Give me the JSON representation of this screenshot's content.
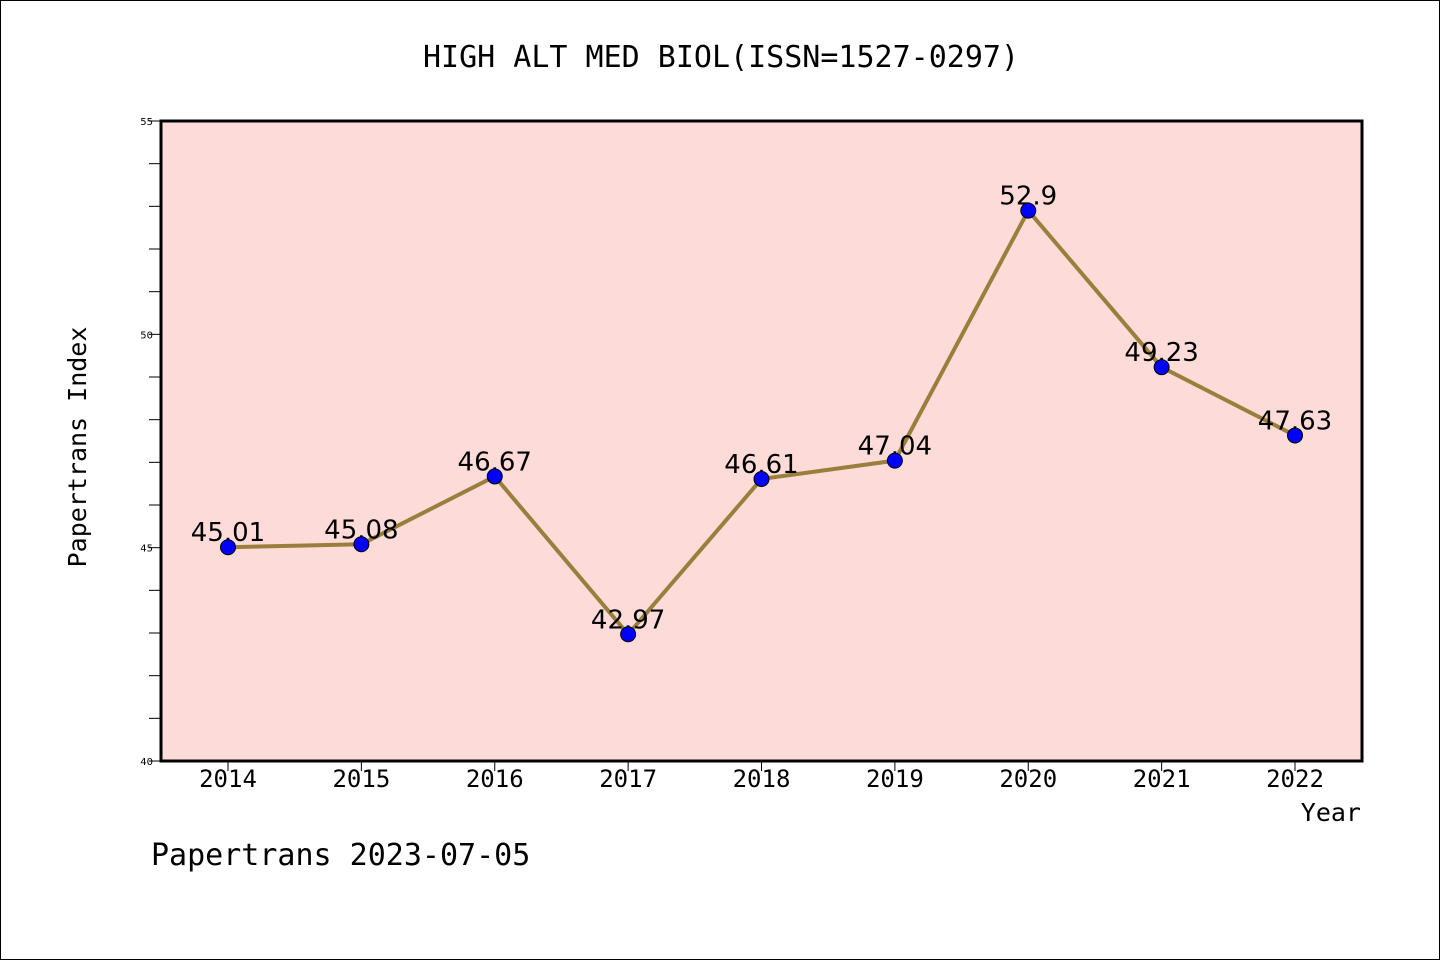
{
  "chart_data": {
    "type": "line",
    "title": "HIGH ALT MED BIOL(ISSN=1527-0297)",
    "xlabel": "Year",
    "ylabel": "Papertrans Index",
    "categories": [
      "2014",
      "2015",
      "2016",
      "2017",
      "2018",
      "2019",
      "2020",
      "2021",
      "2022"
    ],
    "values": [
      45.01,
      45.08,
      46.67,
      42.97,
      46.61,
      47.04,
      52.9,
      49.23,
      47.63
    ],
    "data_labels": [
      "45.01",
      "45.08",
      "46.67",
      "42.97",
      "46.61",
      "47.04",
      "52.9",
      "49.23",
      "47.63"
    ],
    "ylim": [
      40,
      55
    ],
    "y_ticks": [
      40,
      45,
      50,
      55
    ],
    "y_tick_labels": [
      "40",
      "45",
      "50",
      "55"
    ],
    "minor_tick_step": 1,
    "grid": false,
    "footer": "Papertrans 2023-07-05",
    "colors": {
      "plot_background": "#fddbd8",
      "line": "#9a7f3c",
      "marker": "#0000ff"
    }
  }
}
